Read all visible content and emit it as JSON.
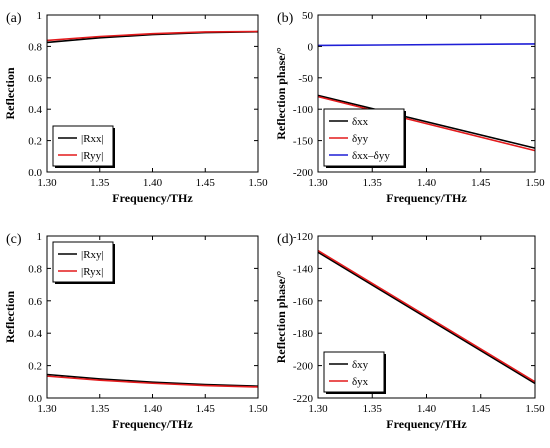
{
  "chart_data": [
    {
      "panel": "(a)",
      "type": "line",
      "xlabel": "Frequency/THz",
      "ylabel": "Reflection",
      "xlim": [
        1.3,
        1.5
      ],
      "ylim": [
        0,
        1
      ],
      "xticks": [
        "1.30",
        "1.35",
        "1.40",
        "1.45",
        "1.50"
      ],
      "yticks": [
        "0.0",
        "0.2",
        "0.4",
        "0.6",
        "0.8",
        "1"
      ],
      "legend_position": "bottom-left",
      "series": [
        {
          "name": "|Rxx|",
          "color": "#000000",
          "x": [
            1.3,
            1.35,
            1.4,
            1.45,
            1.5
          ],
          "y": [
            0.825,
            0.855,
            0.875,
            0.888,
            0.893
          ]
        },
        {
          "name": "|Ryy|",
          "color": "#e31a1c",
          "x": [
            1.3,
            1.35,
            1.4,
            1.45,
            1.5
          ],
          "y": [
            0.838,
            0.863,
            0.881,
            0.892,
            0.895
          ]
        }
      ]
    },
    {
      "panel": "(b)",
      "type": "line",
      "xlabel": "Frequency/THz",
      "ylabel": "Reflection phase/°",
      "xlim": [
        1.3,
        1.5
      ],
      "ylim": [
        -200,
        50
      ],
      "xticks": [
        "1.30",
        "1.35",
        "1.40",
        "1.45",
        "1.50"
      ],
      "yticks": [
        "-200",
        "-150",
        "-100",
        "-50",
        "0",
        "50"
      ],
      "legend_position": "bottom-left",
      "series": [
        {
          "name": "δxx",
          "color": "#000000",
          "x": [
            1.3,
            1.5
          ],
          "y": [
            -78,
            -162
          ]
        },
        {
          "name": "δyy",
          "color": "#e31a1c",
          "x": [
            1.3,
            1.5
          ],
          "y": [
            -80,
            -166
          ]
        },
        {
          "name": "δxx–δyy",
          "color": "#1f1fd6",
          "x": [
            1.3,
            1.5
          ],
          "y": [
            1.5,
            4
          ]
        }
      ]
    },
    {
      "panel": "(c)",
      "type": "line",
      "xlabel": "Frequency/THz",
      "ylabel": "Reflection",
      "xlim": [
        1.3,
        1.5
      ],
      "ylim": [
        0,
        1
      ],
      "xticks": [
        "1.30",
        "1.35",
        "1.40",
        "1.45",
        "1.50"
      ],
      "yticks": [
        "0.0",
        "0.2",
        "0.4",
        "0.6",
        "0.8",
        "1"
      ],
      "legend_position": "top-left",
      "series": [
        {
          "name": "|Rxy|",
          "color": "#000000",
          "x": [
            1.3,
            1.35,
            1.4,
            1.45,
            1.5
          ],
          "y": [
            0.145,
            0.118,
            0.098,
            0.083,
            0.073
          ]
        },
        {
          "name": "|Ryx|",
          "color": "#e31a1c",
          "x": [
            1.3,
            1.35,
            1.4,
            1.45,
            1.5
          ],
          "y": [
            0.135,
            0.11,
            0.091,
            0.077,
            0.068
          ]
        }
      ]
    },
    {
      "panel": "(d)",
      "type": "line",
      "xlabel": "Frequency/THz",
      "ylabel": "Reflection phase/°",
      "xlim": [
        1.3,
        1.5
      ],
      "ylim": [
        -220,
        -120
      ],
      "xticks": [
        "1.30",
        "1.35",
        "1.40",
        "1.45",
        "1.50"
      ],
      "yticks": [
        "-220",
        "-200",
        "-180",
        "-160",
        "-140",
        "-120"
      ],
      "legend_position": "bottom-left",
      "series": [
        {
          "name": "δxy",
          "color": "#000000",
          "x": [
            1.3,
            1.5
          ],
          "y": [
            -130,
            -211
          ]
        },
        {
          "name": "δyx",
          "color": "#e31a1c",
          "x": [
            1.3,
            1.5
          ],
          "y": [
            -129,
            -210
          ]
        }
      ]
    }
  ]
}
